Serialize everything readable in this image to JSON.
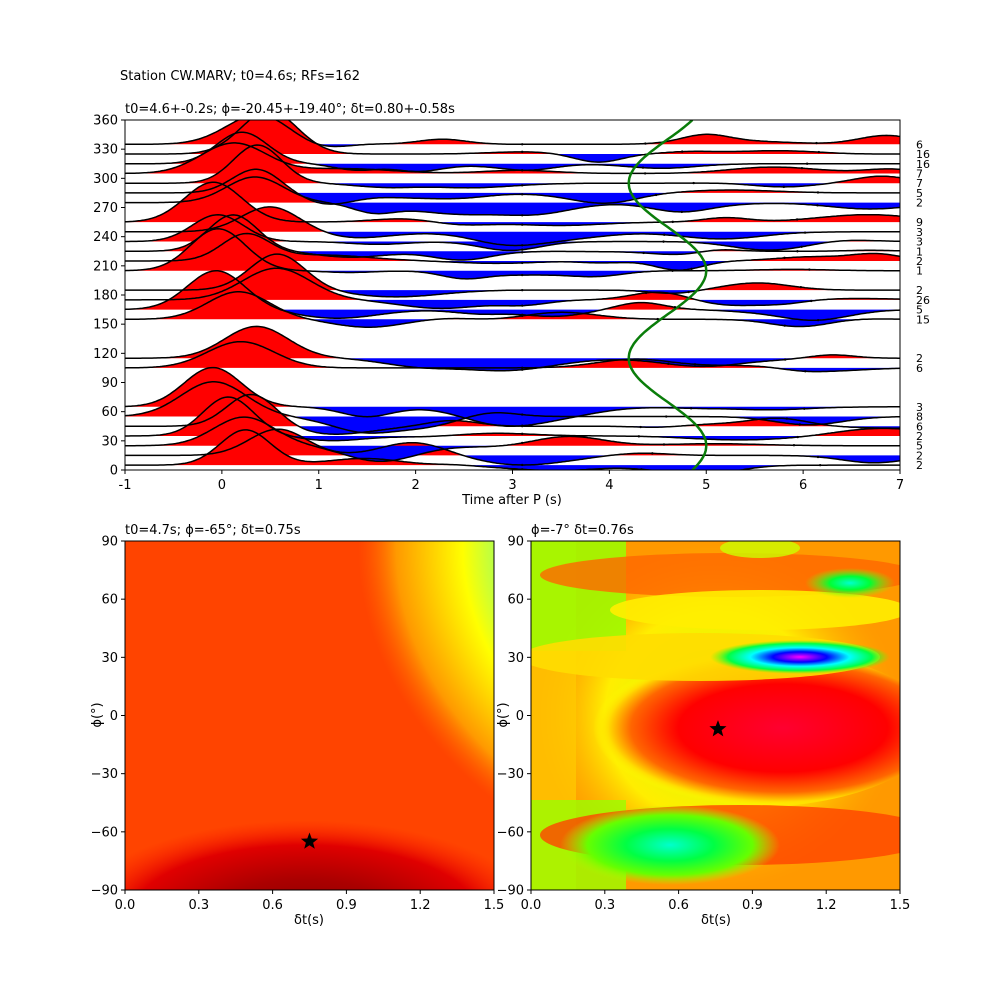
{
  "figure": {
    "suptitle": "Station CW.MARV; t0=4.6s; RFs=162"
  },
  "chart_data": [
    {
      "type": "line",
      "panel": "top",
      "title": "t0=4.6+-0.2s; ϕ=-20.45+-19.40°; δt=0.80+-0.58s",
      "xlabel": "Time after P (s)",
      "ylabel": "",
      "xlim": [
        -1,
        7
      ],
      "ylim": [
        0,
        360
      ],
      "xticks": [
        -1,
        0,
        1,
        2,
        3,
        4,
        5,
        6,
        7
      ],
      "yticks": [
        0,
        30,
        60,
        90,
        120,
        150,
        180,
        210,
        240,
        270,
        300,
        330,
        360
      ],
      "fill_positive_color": "#ff0000",
      "fill_negative_color": "#0000ff",
      "curve_color": "#0a7d0a",
      "traces": [
        {
          "baz": 5,
          "count": "2"
        },
        {
          "baz": 15,
          "count": "2"
        },
        {
          "baz": 25,
          "count": "5"
        },
        {
          "baz": 35,
          "count": "2"
        },
        {
          "baz": 45,
          "count": "6"
        },
        {
          "baz": 55,
          "count": "8"
        },
        {
          "baz": 65,
          "count": "3"
        },
        {
          "baz": 105,
          "count": "6"
        },
        {
          "baz": 115,
          "count": "2"
        },
        {
          "baz": 155,
          "count": "15"
        },
        {
          "baz": 165,
          "count": "5"
        },
        {
          "baz": 175,
          "count": "26"
        },
        {
          "baz": 185,
          "count": "2"
        },
        {
          "baz": 205,
          "count": "1"
        },
        {
          "baz": 215,
          "count": "2"
        },
        {
          "baz": 225,
          "count": "1"
        },
        {
          "baz": 235,
          "count": "3"
        },
        {
          "baz": 245,
          "count": "3"
        },
        {
          "baz": 255,
          "count": "9"
        },
        {
          "baz": 275,
          "count": "2"
        },
        {
          "baz": 285,
          "count": "5"
        },
        {
          "baz": 295,
          "count": "7"
        },
        {
          "baz": 305,
          "count": "7"
        },
        {
          "baz": 315,
          "count": "16"
        },
        {
          "baz": 325,
          "count": "16"
        },
        {
          "baz": 335,
          "count": "6"
        }
      ],
      "predicted_t0": {
        "center": 4.6,
        "amplitude": 0.4,
        "period_deg": 180,
        "phase_deg": -20
      }
    },
    {
      "type": "heatmap",
      "panel": "bottom-left",
      "title": "t0=4.7s; ϕ=-65°; δt=0.75s",
      "xlabel": "δt(s)",
      "ylabel": "ϕ(°)",
      "xlim": [
        0,
        1.5
      ],
      "ylim": [
        -90,
        90
      ],
      "xticks": [
        "0.0",
        "0.3",
        "0.6",
        "0.9",
        "1.2",
        "1.5"
      ],
      "yticks": [
        "90",
        "60",
        "30",
        "0",
        "−30",
        "−60",
        "−90"
      ],
      "best": {
        "dt": 0.75,
        "phi": -65
      },
      "colormap": "jet"
    },
    {
      "type": "heatmap",
      "panel": "bottom-right",
      "title": "ϕ=-7° δt=0.76s",
      "xlabel": "δt(s)",
      "ylabel": "ϕ(°)",
      "xlim": [
        0,
        1.5
      ],
      "ylim": [
        -90,
        90
      ],
      "xticks": [
        "0.0",
        "0.3",
        "0.6",
        "0.9",
        "1.2",
        "1.5"
      ],
      "yticks": [
        "90",
        "60",
        "30",
        "0",
        "−30",
        "−60",
        "−90"
      ],
      "best": {
        "dt": 0.76,
        "phi": -7
      },
      "colormap": "hsv"
    }
  ]
}
